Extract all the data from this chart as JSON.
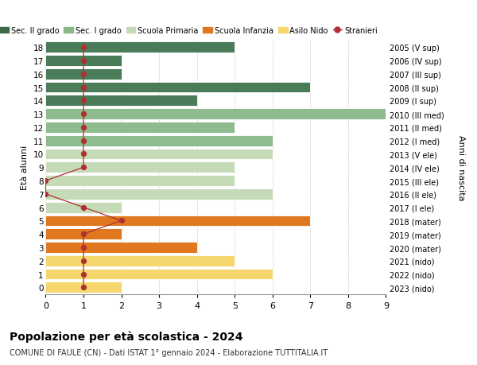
{
  "ages": [
    18,
    17,
    16,
    15,
    14,
    13,
    12,
    11,
    10,
    9,
    8,
    7,
    6,
    5,
    4,
    3,
    2,
    1,
    0
  ],
  "right_labels": [
    "2005 (V sup)",
    "2006 (IV sup)",
    "2007 (III sup)",
    "2008 (II sup)",
    "2009 (I sup)",
    "2010 (III med)",
    "2011 (II med)",
    "2012 (I med)",
    "2013 (V ele)",
    "2014 (IV ele)",
    "2015 (III ele)",
    "2016 (II ele)",
    "2017 (I ele)",
    "2018 (mater)",
    "2019 (mater)",
    "2020 (mater)",
    "2021 (nido)",
    "2022 (nido)",
    "2023 (nido)"
  ],
  "bar_values": [
    5,
    2,
    2,
    7,
    4,
    9,
    5,
    6,
    6,
    5,
    5,
    6,
    2,
    7,
    2,
    4,
    5,
    6,
    2
  ],
  "bar_colors": [
    "#4a7c59",
    "#4a7c59",
    "#4a7c59",
    "#4a7c59",
    "#4a7c59",
    "#8fbc8f",
    "#8fbc8f",
    "#8fbc8f",
    "#c5dbb8",
    "#c5dbb8",
    "#c5dbb8",
    "#c5dbb8",
    "#c5dbb8",
    "#e07820",
    "#e07820",
    "#e07820",
    "#f5d76e",
    "#f5d76e",
    "#f5d76e"
  ],
  "stranieri_x": [
    1,
    1,
    1,
    1,
    1,
    1,
    1,
    1,
    1,
    1,
    0,
    0,
    1,
    2,
    1,
    1,
    1,
    1,
    1
  ],
  "stranieri_y": [
    18,
    17,
    16,
    15,
    14,
    13,
    12,
    11,
    10,
    9,
    8,
    7,
    6,
    5,
    4,
    3,
    2,
    1,
    0
  ],
  "color_sec2": "#3d6b47",
  "color_sec1": "#8ab88a",
  "color_prim": "#c5dbb8",
  "color_inf": "#e07820",
  "color_nido": "#f5d76e",
  "color_stranieri": "#b03030",
  "title": "Popolazione per età scolastica - 2024",
  "subtitle": "COMUNE DI FAULE (CN) - Dati ISTAT 1° gennaio 2024 - Elaborazione TUTTITALIA.IT",
  "right_axis_label": "Anni di nascita",
  "ylabel": "Età alunni",
  "xlim": [
    0,
    9
  ],
  "xticks": [
    0,
    1,
    2,
    3,
    4,
    5,
    6,
    7,
    8,
    9
  ],
  "legend_labels": [
    "Sec. II grado",
    "Sec. I grado",
    "Scuola Primaria",
    "Scuola Infanzia",
    "Asilo Nido",
    "Stranieri"
  ],
  "legend_colors": [
    "#3d6b47",
    "#8ab88a",
    "#c5dbb8",
    "#e07820",
    "#f5d76e",
    "#b03030"
  ]
}
